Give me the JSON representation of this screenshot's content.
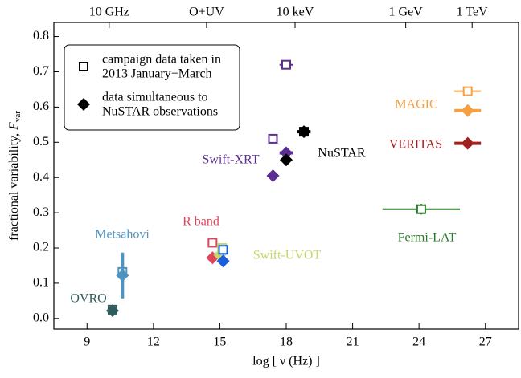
{
  "chart_data": {
    "type": "scatter",
    "xlabel": "log [ ν (Hz) ]",
    "ylabel": {
      "text": "fractional variability, ",
      "symbol": "F",
      "sub": "var"
    },
    "xlim": [
      7.5,
      28.5
    ],
    "ylim": [
      -0.03,
      0.84
    ],
    "xticks": [
      9,
      12,
      15,
      18,
      21,
      24,
      27
    ],
    "yticks": [
      {
        "value": 0,
        "label": "0.0"
      },
      0.1,
      0.2,
      0.3,
      0.4,
      0.5,
      0.6,
      0.7,
      0.8
    ],
    "top_ticks": [
      {
        "value": 10.0,
        "label": "10 GHz"
      },
      {
        "value": 14.4,
        "label": "O+UV"
      },
      {
        "value": 18.4,
        "label": "10 keV"
      },
      {
        "value": 23.4,
        "label": "1 GeV"
      },
      {
        "value": 26.4,
        "label": "1 TeV"
      }
    ],
    "legend": [
      {
        "marker": "square",
        "lines": [
          "campaign data taken in",
          "2013 January−March"
        ]
      },
      {
        "marker": "diamond",
        "lines": [
          "data simultaneous to",
          "NuSTAR observations"
        ]
      }
    ],
    "series": [
      {
        "name": "OVRO",
        "color": "#2f5c5c",
        "points": [
          {
            "marker": "square",
            "x": 10.15,
            "y": 0.025
          },
          {
            "marker": "diamond",
            "x": 10.15,
            "y": 0.022
          }
        ]
      },
      {
        "name": "Metsahovi",
        "color": "#4f93c0",
        "points": [
          {
            "marker": "square",
            "x": 10.6,
            "y": 0.132
          },
          {
            "marker": "diamond",
            "x": 10.6,
            "y": 0.122,
            "yerr": 0.065
          }
        ]
      },
      {
        "name": "R band",
        "color": "#e0445c",
        "points": [
          {
            "marker": "square",
            "x": 14.67,
            "y": 0.215
          },
          {
            "marker": "diamond",
            "x": 14.67,
            "y": 0.172
          }
        ]
      },
      {
        "name": "Swift-UVOT",
        "color": "#c5d86a",
        "points": [
          {
            "marker": "square",
            "x": 15.1,
            "y": 0.2
          },
          {
            "marker": "diamond",
            "x": 15.0,
            "y": 0.18
          },
          {
            "marker": "square",
            "x": 15.15,
            "y": 0.195,
            "color": "#1a5fe0"
          },
          {
            "marker": "diamond",
            "x": 15.15,
            "y": 0.163,
            "color": "#1a5fe0"
          }
        ]
      },
      {
        "name": "Swift-XRT",
        "color": "#5b2e91",
        "points": [
          {
            "marker": "square",
            "x": 17.4,
            "y": 0.51
          },
          {
            "marker": "square",
            "x": 18.0,
            "y": 0.72,
            "xerr": 0.3
          },
          {
            "marker": "diamond",
            "x": 17.4,
            "y": 0.405
          },
          {
            "marker": "diamond",
            "x": 18.0,
            "y": 0.47,
            "xerr": 0.3
          }
        ]
      },
      {
        "name": "NuSTAR",
        "color": "#000000",
        "points": [
          {
            "marker": "square",
            "x": 18.8,
            "y": 0.53,
            "xerr": 0.3
          },
          {
            "marker": "diamond",
            "x": 18.8,
            "y": 0.53,
            "xerr": 0.3
          },
          {
            "marker": "diamond",
            "x": 18.0,
            "y": 0.45
          }
        ]
      },
      {
        "name": "Fermi-LAT",
        "color": "#2a7a2a",
        "points": [
          {
            "marker": "square",
            "x": 24.1,
            "y": 0.31,
            "xerr": 1.75,
            "yerr": 0.015
          }
        ]
      },
      {
        "name": "MAGIC",
        "color": "#f5a040",
        "points": [
          {
            "marker": "square",
            "x": 26.2,
            "y": 0.645,
            "xerr": 0.6
          },
          {
            "marker": "diamond",
            "x": 26.2,
            "y": 0.59,
            "xerr": 0.6,
            "yerr": 0.015
          }
        ]
      },
      {
        "name": "VERITAS",
        "color": "#a02020",
        "points": [
          {
            "marker": "diamond",
            "x": 26.2,
            "y": 0.497,
            "xerr": 0.6
          }
        ]
      }
    ]
  }
}
